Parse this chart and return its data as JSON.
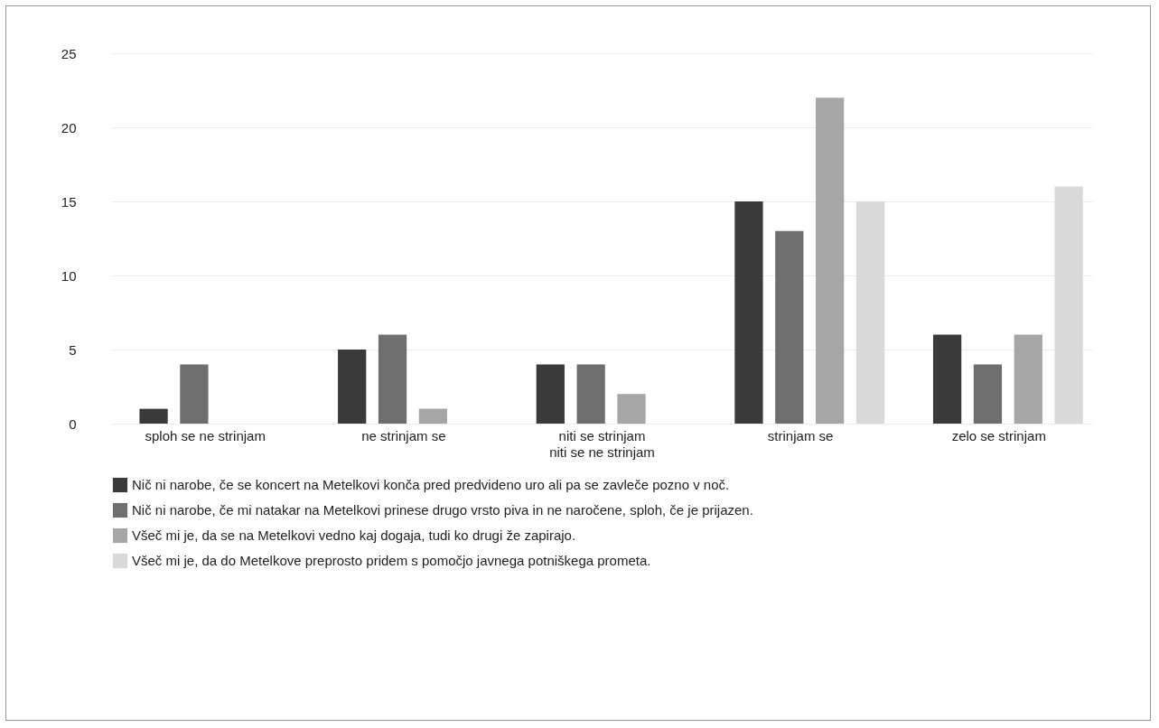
{
  "chart_data": {
    "type": "bar",
    "categories": [
      "sploh se ne strinjam",
      "ne strinjam se",
      "niti se strinjam\nniti se ne strinjam",
      "strinjam se",
      "zelo se strinjam"
    ],
    "series": [
      {
        "name": "Nič ni narobe, če se koncert na Metelkovi konča pred predvideno uro ali pa se zavleče pozno v noč.",
        "color": "#3a3a3a",
        "values": [
          1,
          5,
          4,
          15,
          6
        ]
      },
      {
        "name": "Nič ni narobe, če mi natakar na Metelkovi prinese drugo vrsto piva in ne naročene, sploh, če je prijazen.",
        "color": "#6e6e6e",
        "values": [
          4,
          6,
          4,
          13,
          4
        ]
      },
      {
        "name": "Všeč mi je, da se na Metelkovi vedno kaj dogaja, tudi ko drugi že zapirajo.",
        "color": "#a6a6a6",
        "values": [
          0,
          1,
          2,
          22,
          6
        ]
      },
      {
        "name": "Všeč mi je, da do Metelkove preprosto pridem s pomočjo javnega potniškega prometa.",
        "color": "#d9d9d9",
        "values": [
          0,
          0,
          0,
          15,
          16
        ]
      }
    ],
    "ylim": [
      0,
      25
    ],
    "yticks": [
      0,
      5,
      10,
      15,
      20,
      25
    ],
    "grid": "y",
    "legend": "bottom"
  }
}
